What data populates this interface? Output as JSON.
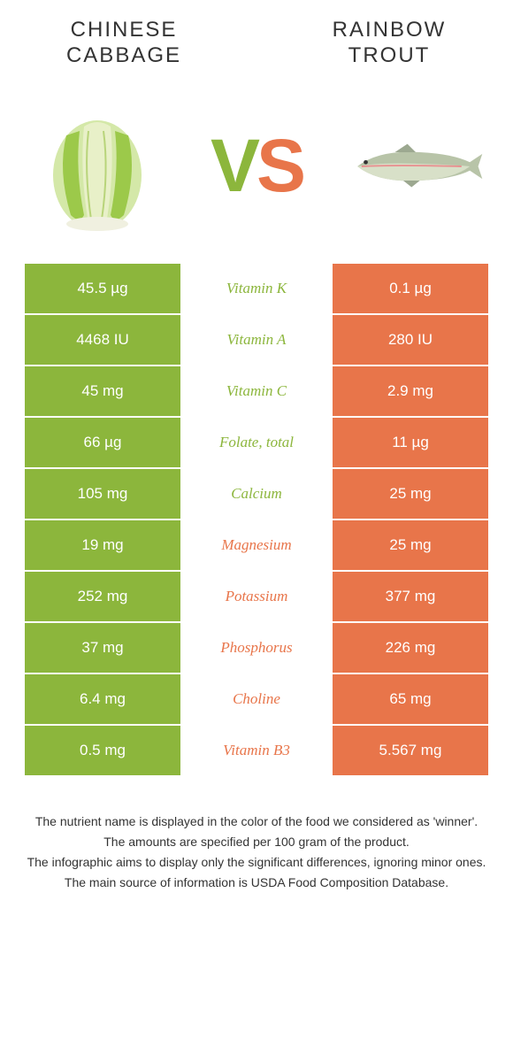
{
  "colors": {
    "green": "#8cb63c",
    "orange": "#e8754a",
    "text_dark": "#333333",
    "bg": "#ffffff"
  },
  "left_food": {
    "title_line1": "CHINESE",
    "title_line2": "CABBAGE"
  },
  "right_food": {
    "title_line1": "RAINBOW",
    "title_line2": "TROUT"
  },
  "vs": {
    "v": "V",
    "s": "S"
  },
  "rows": [
    {
      "left": "45.5 µg",
      "nutrient": "Vitamin K",
      "right": "0.1 µg",
      "winner": "left"
    },
    {
      "left": "4468 IU",
      "nutrient": "Vitamin A",
      "right": "280 IU",
      "winner": "left"
    },
    {
      "left": "45 mg",
      "nutrient": "Vitamin C",
      "right": "2.9 mg",
      "winner": "left"
    },
    {
      "left": "66 µg",
      "nutrient": "Folate, total",
      "right": "11 µg",
      "winner": "left"
    },
    {
      "left": "105 mg",
      "nutrient": "Calcium",
      "right": "25 mg",
      "winner": "left"
    },
    {
      "left": "19 mg",
      "nutrient": "Magnesium",
      "right": "25 mg",
      "winner": "right"
    },
    {
      "left": "252 mg",
      "nutrient": "Potassium",
      "right": "377 mg",
      "winner": "right"
    },
    {
      "left": "37 mg",
      "nutrient": "Phosphorus",
      "right": "226 mg",
      "winner": "right"
    },
    {
      "left": "6.4 mg",
      "nutrient": "Choline",
      "right": "65 mg",
      "winner": "right"
    },
    {
      "left": "0.5 mg",
      "nutrient": "Vitamin B3",
      "right": "5.567 mg",
      "winner": "right"
    }
  ],
  "footer": {
    "line1": "The nutrient name is displayed in the color of the food we considered as 'winner'.",
    "line2": "The amounts are specified per 100 gram of the product.",
    "line3": "The infographic aims to display only the significant differences, ignoring minor ones.",
    "line4": "The main source of information is USDA Food Composition Database."
  }
}
